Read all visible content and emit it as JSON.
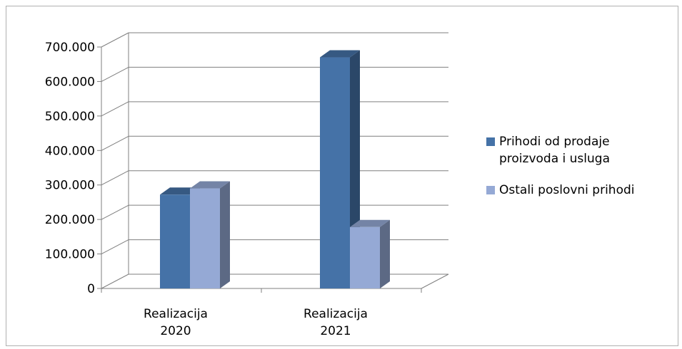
{
  "chart_data": {
    "type": "bar",
    "categories": [
      {
        "lines": [
          "Realizacija",
          "2020"
        ]
      },
      {
        "lines": [
          "Realizacija",
          "2021"
        ]
      }
    ],
    "series": [
      {
        "name": "Prihodi od prodaje proizvoda i usluga",
        "name_lines": [
          "Prihodi od prodaje",
          "proizvoda i usluga"
        ],
        "color": "#4572A7",
        "values": [
          272000,
          670000
        ]
      },
      {
        "name": "Ostali poslovni prihodi",
        "name_lines": [
          "Ostali poslovni prihodi"
        ],
        "color": "#95A9D5",
        "values": [
          290000,
          178000
        ]
      }
    ],
    "ylim": [
      0,
      700000
    ],
    "yticks": [
      0,
      100000,
      200000,
      300000,
      400000,
      500000,
      600000,
      700000
    ],
    "ytick_labels": [
      "0",
      "100.000",
      "200.000",
      "300.000",
      "400.000",
      "500.000",
      "600.000",
      "700.000"
    ],
    "title": "",
    "xlabel": "",
    "ylabel": "",
    "grid": true,
    "legend_position": "right",
    "three_d": true
  }
}
